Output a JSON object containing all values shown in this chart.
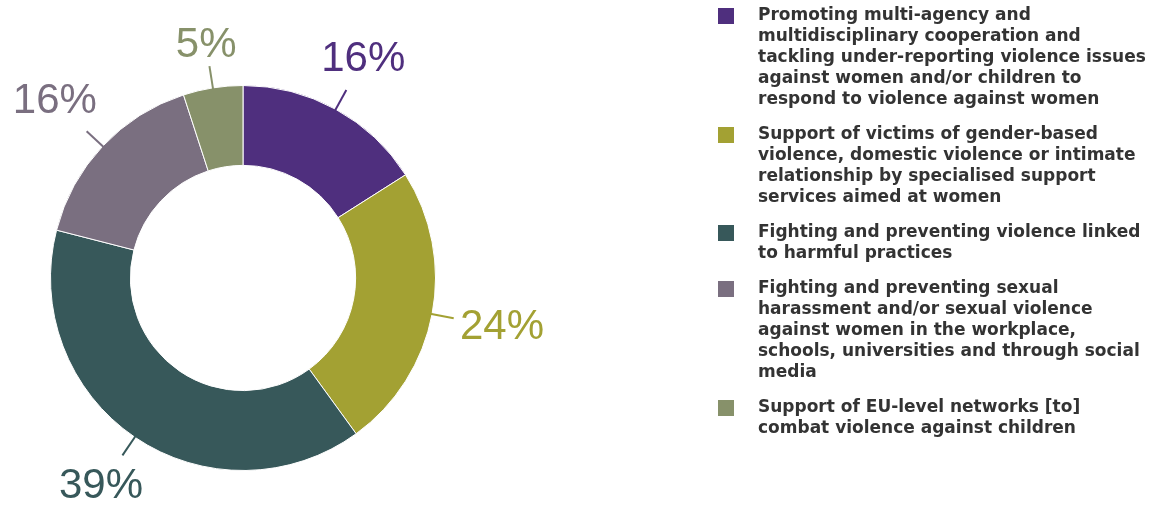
{
  "chart_data": {
    "type": "donut",
    "categories": [
      "Promoting multi-agency and multidisciplinary cooperation and tackling under-reporting violence issues against women and/or children to respond to violence against women",
      "Support of victims of gender-based violence, domestic violence or intimate relationship by specialised support services aimed at women",
      "Fighting and preventing violence linked to harmful practices",
      "Fighting and preventing sexual harassment and/or sexual violence against women in the workplace, schools, universities and through social media",
      "Support of EU-level networks [to] combat violence against children"
    ],
    "values": [
      16,
      24,
      39,
      16,
      5
    ],
    "value_labels": [
      "16%",
      "24%",
      "39%",
      "16%",
      "5%"
    ],
    "colors": [
      "#4f2f7e",
      "#a3a133",
      "#37585a",
      "#7a6f80",
      "#87916a"
    ],
    "legend": "right"
  }
}
